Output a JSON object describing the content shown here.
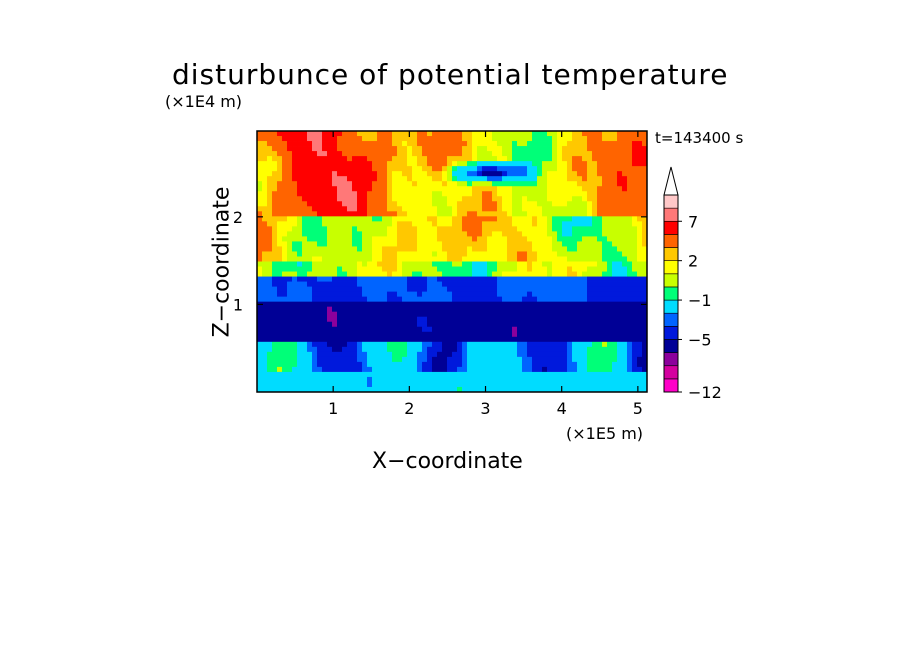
{
  "chart_data": {
    "type": "heatmap",
    "title": "disturbunce of potential temperature",
    "xlabel": "X−coordinate",
    "ylabel": "Z−coordinate",
    "x_unit": "(×1E5 m)",
    "y_unit": "(×1E4 m)",
    "time_label": "t=143400 s",
    "xlim": [
      0,
      5.12
    ],
    "ylim": [
      0,
      2.98
    ],
    "x_ticks": [
      1,
      2,
      3,
      4,
      5
    ],
    "x_tick_labels": [
      "1",
      "2",
      "3",
      "4",
      "5"
    ],
    "y_ticks": [
      1,
      2
    ],
    "y_tick_labels": [
      "1",
      "2"
    ],
    "colorbar": {
      "levels": [
        -12,
        -11,
        -9,
        -7,
        -5,
        -4,
        -3,
        -1,
        0,
        1,
        2,
        3,
        5,
        7,
        9,
        11
      ],
      "tick_values": [
        -12,
        -5,
        -1,
        2,
        7
      ],
      "tick_labels": [
        "−12",
        "−5",
        "−1",
        "2",
        "7"
      ],
      "colors": [
        "#ff00c8",
        "#d4009f",
        "#8c009c",
        "#000096",
        "#0019dc",
        "#0064ff",
        "#00dcff",
        "#00ff78",
        "#c8ff00",
        "#ffff00",
        "#ffc800",
        "#ff6400",
        "#ff0000",
        "#ff7878",
        "#ffc8c8",
        "#ffffff"
      ],
      "extend_max": true
    },
    "grid": false,
    "field_description_layers": [
      {
        "z_from": 0.0,
        "z_to": 0.25,
        "value": -2
      },
      {
        "z_from": 0.25,
        "z_to": 0.55,
        "value": -3
      },
      {
        "z_from": 0.55,
        "z_to": 1.05,
        "value": -6
      },
      {
        "z_from": 1.05,
        "z_to": 1.3,
        "value": -4
      },
      {
        "z_from": 1.3,
        "z_to": 1.5,
        "value": 0.5
      },
      {
        "z_from": 1.5,
        "z_to": 2.0,
        "value": 1.5
      },
      {
        "z_from": 2.0,
        "z_to": 2.98,
        "value": 3
      }
    ]
  }
}
